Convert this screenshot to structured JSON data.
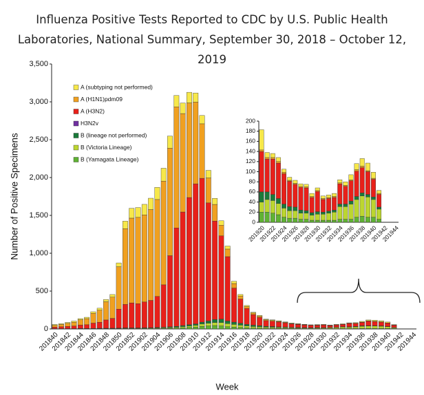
{
  "chart_data": [
    {
      "type": "bar",
      "stacked": true,
      "title": "Influenza Positive Tests Reported to CDC by U.S. Public Health Laboratories, National Summary, September 30, 2018 – October 12, 2019",
      "x_label": "Week",
      "y_label": "Number of Positive Specimens",
      "categories": [
        "201840",
        null,
        "201842",
        null,
        "201844",
        null,
        "201846",
        null,
        "201848",
        null,
        "201850",
        null,
        "201852",
        null,
        "201902",
        null,
        "201904",
        null,
        "201906",
        null,
        "201908",
        null,
        "201910",
        null,
        "201912",
        null,
        "201914",
        null,
        "201916",
        null,
        "201918",
        null,
        "201920",
        null,
        "201922",
        null,
        "201924",
        null,
        "201926",
        null,
        "201928",
        null,
        "201930",
        null,
        "201932",
        null,
        "201934",
        null,
        "201936",
        null,
        "201938",
        null,
        "201940",
        null,
        "201942",
        null,
        "201944"
      ],
      "ylim": [
        0,
        3500
      ],
      "yticks": [
        0,
        500,
        {
          "value": 1000,
          "label": "1,000"
        },
        {
          "value": 1500,
          "label": "1,500"
        },
        {
          "value": 2000,
          "label": "2,000"
        },
        {
          "value": 2500,
          "label": "2,500"
        },
        {
          "value": 3000,
          "label": "3,000"
        },
        {
          "value": 3500,
          "label": "3,500"
        }
      ],
      "series": [
        {
          "name": "A (subtyping not performed)",
          "color": "#f7e84a",
          "values": [
            10,
            10,
            12,
            15,
            15,
            18,
            20,
            25,
            30,
            35,
            50,
            100,
            130,
            130,
            140,
            150,
            160,
            170,
            160,
            150,
            140,
            140,
            120,
            110,
            100,
            80,
            60,
            40,
            30,
            20,
            15,
            10,
            10,
            8,
            8,
            8,
            6,
            6,
            6,
            5,
            5,
            6,
            5,
            5,
            5,
            6,
            6,
            7,
            10,
            12,
            15,
            15,
            12,
            6,
            null,
            null,
            null
          ]
        },
        {
          "name": "A (H1N1)pdm09",
          "color": "#f0a020",
          "values": [
            25,
            30,
            40,
            50,
            70,
            80,
            130,
            160,
            240,
            280,
            560,
            1000,
            1120,
            1140,
            1150,
            1200,
            1280,
            1370,
            1420,
            1600,
            1300,
            1250,
            1080,
            720,
            330,
            220,
            140,
            100,
            60,
            40,
            25,
            20,
            15,
            12,
            10,
            8,
            6,
            5,
            4,
            3,
            3,
            3,
            2,
            2,
            2,
            2,
            2,
            3,
            3,
            3,
            3,
            2,
            2,
            2,
            null,
            null,
            null
          ]
        },
        {
          "name": "A (H3N2)",
          "color": "#e8201a",
          "values": [
            20,
            25,
            30,
            35,
            45,
            50,
            70,
            80,
            110,
            130,
            250,
            310,
            330,
            320,
            340,
            360,
            410,
            560,
            940,
            1300,
            1500,
            1680,
            1850,
            1900,
            1560,
            1300,
            1100,
            850,
            450,
            320,
            210,
            140,
            110,
            75,
            70,
            65,
            55,
            45,
            40,
            35,
            30,
            30,
            35,
            25,
            30,
            30,
            45,
            40,
            45,
            60,
            55,
            50,
            45,
            30,
            null,
            null,
            null
          ]
        },
        {
          "name": "H3N2v",
          "color": "#7030a0",
          "values": [
            0,
            0,
            0,
            0,
            0,
            0,
            0,
            0,
            0,
            0,
            0,
            0,
            0,
            0,
            0,
            0,
            0,
            0,
            0,
            0,
            0,
            0,
            0,
            0,
            0,
            0,
            0,
            0,
            0,
            0,
            0,
            0,
            0,
            0,
            0,
            0,
            0,
            0,
            0,
            0,
            0,
            0,
            0,
            0,
            0,
            0,
            0,
            0,
            0,
            0,
            0,
            0,
            0,
            0,
            null,
            null,
            null
          ]
        },
        {
          "name": "B (lineage not performed)",
          "color": "#1a7a3a",
          "values": [
            1,
            1,
            1,
            1,
            2,
            2,
            2,
            3,
            3,
            3,
            4,
            5,
            5,
            5,
            6,
            6,
            7,
            8,
            10,
            12,
            15,
            18,
            20,
            25,
            30,
            40,
            45,
            35,
            30,
            25,
            20,
            18,
            15,
            12,
            10,
            8,
            8,
            7,
            6,
            5,
            5,
            5,
            4,
            4,
            4,
            5,
            5,
            6,
            6,
            6,
            5,
            5,
            4,
            3,
            null,
            null,
            null
          ]
        },
        {
          "name": "B (Victoria Lineage)",
          "color": "#bcd630",
          "values": [
            2,
            2,
            2,
            2,
            3,
            3,
            3,
            4,
            4,
            5,
            5,
            6,
            6,
            6,
            6,
            7,
            8,
            9,
            10,
            12,
            15,
            18,
            22,
            30,
            35,
            40,
            45,
            40,
            35,
            30,
            25,
            20,
            18,
            15,
            14,
            12,
            12,
            10,
            9,
            9,
            8,
            10,
            10,
            12,
            15,
            20,
            18,
            22,
            30,
            30,
            30,
            28,
            22,
            12,
            null,
            null,
            null
          ]
        },
        {
          "name": "B (Yamagata Lineage)",
          "color": "#5fb233",
          "values": [
            1,
            1,
            1,
            1,
            1,
            1,
            2,
            2,
            2,
            2,
            3,
            3,
            3,
            3,
            4,
            4,
            5,
            6,
            8,
            10,
            15,
            20,
            25,
            35,
            40,
            45,
            40,
            30,
            25,
            20,
            15,
            12,
            10,
            8,
            8,
            7,
            6,
            5,
            5,
            4,
            4,
            4,
            4,
            4,
            4,
            5,
            5,
            5,
            6,
            8,
            8,
            8,
            7,
            5,
            null,
            null,
            null
          ]
        }
      ]
    },
    {
      "type": "bar",
      "stacked": true,
      "categories": [
        "201920",
        null,
        "201922",
        null,
        "201924",
        null,
        "201926",
        null,
        "201928",
        null,
        "201930",
        null,
        "201932",
        null,
        "201934",
        null,
        "201936",
        null,
        "201938",
        null,
        "201940",
        null,
        "201942",
        null,
        "201944"
      ],
      "ylim": [
        0,
        200
      ],
      "yticks": [
        0,
        20,
        40,
        60,
        80,
        100,
        120,
        140,
        160,
        180,
        200
      ],
      "series": [
        {
          "color": "#f7e84a",
          "values": [
            40,
            10,
            8,
            8,
            6,
            6,
            6,
            5,
            5,
            6,
            5,
            5,
            5,
            6,
            6,
            7,
            10,
            12,
            15,
            15,
            12,
            6,
            null,
            null,
            null
          ]
        },
        {
          "color": "#f0a020",
          "values": [
            3,
            3,
            3,
            3,
            3,
            2,
            2,
            2,
            2,
            2,
            2,
            2,
            2,
            2,
            2,
            2,
            2,
            3,
            3,
            2,
            2,
            2,
            null,
            null,
            null
          ]
        },
        {
          "color": "#e8201a",
          "values": [
            80,
            65,
            70,
            70,
            60,
            50,
            45,
            45,
            45,
            30,
            40,
            25,
            25,
            25,
            40,
            35,
            40,
            50,
            50,
            45,
            35,
            25,
            null,
            null,
            null
          ]
        },
        {
          "color": "#7030a0",
          "values": [
            0,
            0,
            0,
            0,
            0,
            0,
            0,
            0,
            0,
            0,
            0,
            0,
            0,
            0,
            0,
            0,
            0,
            0,
            0,
            0,
            0,
            0,
            null,
            null,
            null
          ]
        },
        {
          "color": "#1a7a3a",
          "values": [
            20,
            15,
            12,
            10,
            8,
            8,
            7,
            6,
            5,
            5,
            5,
            4,
            4,
            4,
            5,
            5,
            6,
            6,
            6,
            5,
            5,
            4,
            null,
            null,
            null
          ]
        },
        {
          "color": "#bcd630",
          "values": [
            20,
            25,
            25,
            22,
            18,
            15,
            15,
            12,
            12,
            10,
            12,
            12,
            14,
            16,
            25,
            25,
            30,
            35,
            40,
            40,
            35,
            20,
            null,
            null,
            null
          ]
        },
        {
          "color": "#5fb233",
          "values": [
            20,
            20,
            18,
            15,
            10,
            8,
            8,
            6,
            6,
            4,
            4,
            4,
            4,
            4,
            6,
            6,
            6,
            10,
            12,
            10,
            10,
            6,
            null,
            null,
            null
          ]
        }
      ]
    }
  ]
}
